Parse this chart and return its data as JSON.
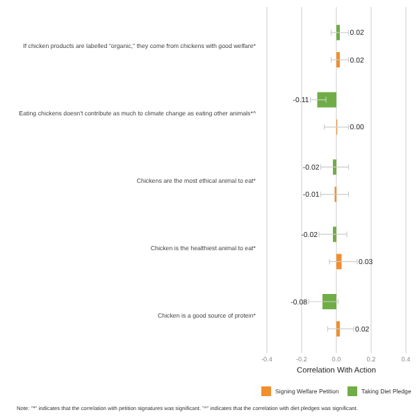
{
  "chart_data": {
    "type": "bar",
    "orientation": "horizontal",
    "xlabel": "Correlation With Action",
    "categories": [
      "If chicken products are labelled \"organic,\" they come from chickens with good welfare*",
      "Eating chickens doesn't contribute as much to climate change as eating other animals*^",
      "Chickens are the most ethical animal to eat*",
      "Chicken is the healthiest animal to eat*",
      "Chicken is a good source of protein*"
    ],
    "series": [
      {
        "name": "Taking Diet Pledge",
        "color": "#70ad47",
        "values": [
          0.02,
          -0.11,
          -0.02,
          -0.02,
          -0.08
        ],
        "errors": [
          [
            -0.03,
            0.07
          ],
          [
            -0.15,
            -0.06
          ],
          [
            -0.09,
            0.07
          ],
          [
            -0.1,
            0.06
          ],
          [
            -0.16,
            0.01
          ]
        ]
      },
      {
        "name": "Signing Welfare Petition",
        "color": "#f28e2b",
        "values": [
          0.02,
          0.0,
          -0.01,
          0.03,
          0.02
        ],
        "value_labels": [
          "0.02",
          "0.00",
          "-0.01",
          "0.03",
          "0.02"
        ],
        "errors": [
          [
            -0.03,
            0.07
          ],
          [
            -0.07,
            0.07
          ],
          [
            -0.09,
            0.07
          ],
          [
            -0.04,
            0.12
          ],
          [
            -0.05,
            0.1
          ]
        ]
      }
    ],
    "data_labels": true,
    "xlim": [
      -0.4,
      0.4
    ],
    "xticks": [
      -0.4,
      -0.2,
      {
        "value": 0,
        "label": "0.0"
      },
      0.2,
      0.4
    ],
    "grid": "x",
    "legend": "bottom",
    "annotations": [
      "Note: \"*\" indicates that the correlation with petition signatures was significant. \"^\" indicates that the correlation with diet pledges was significant."
    ]
  }
}
